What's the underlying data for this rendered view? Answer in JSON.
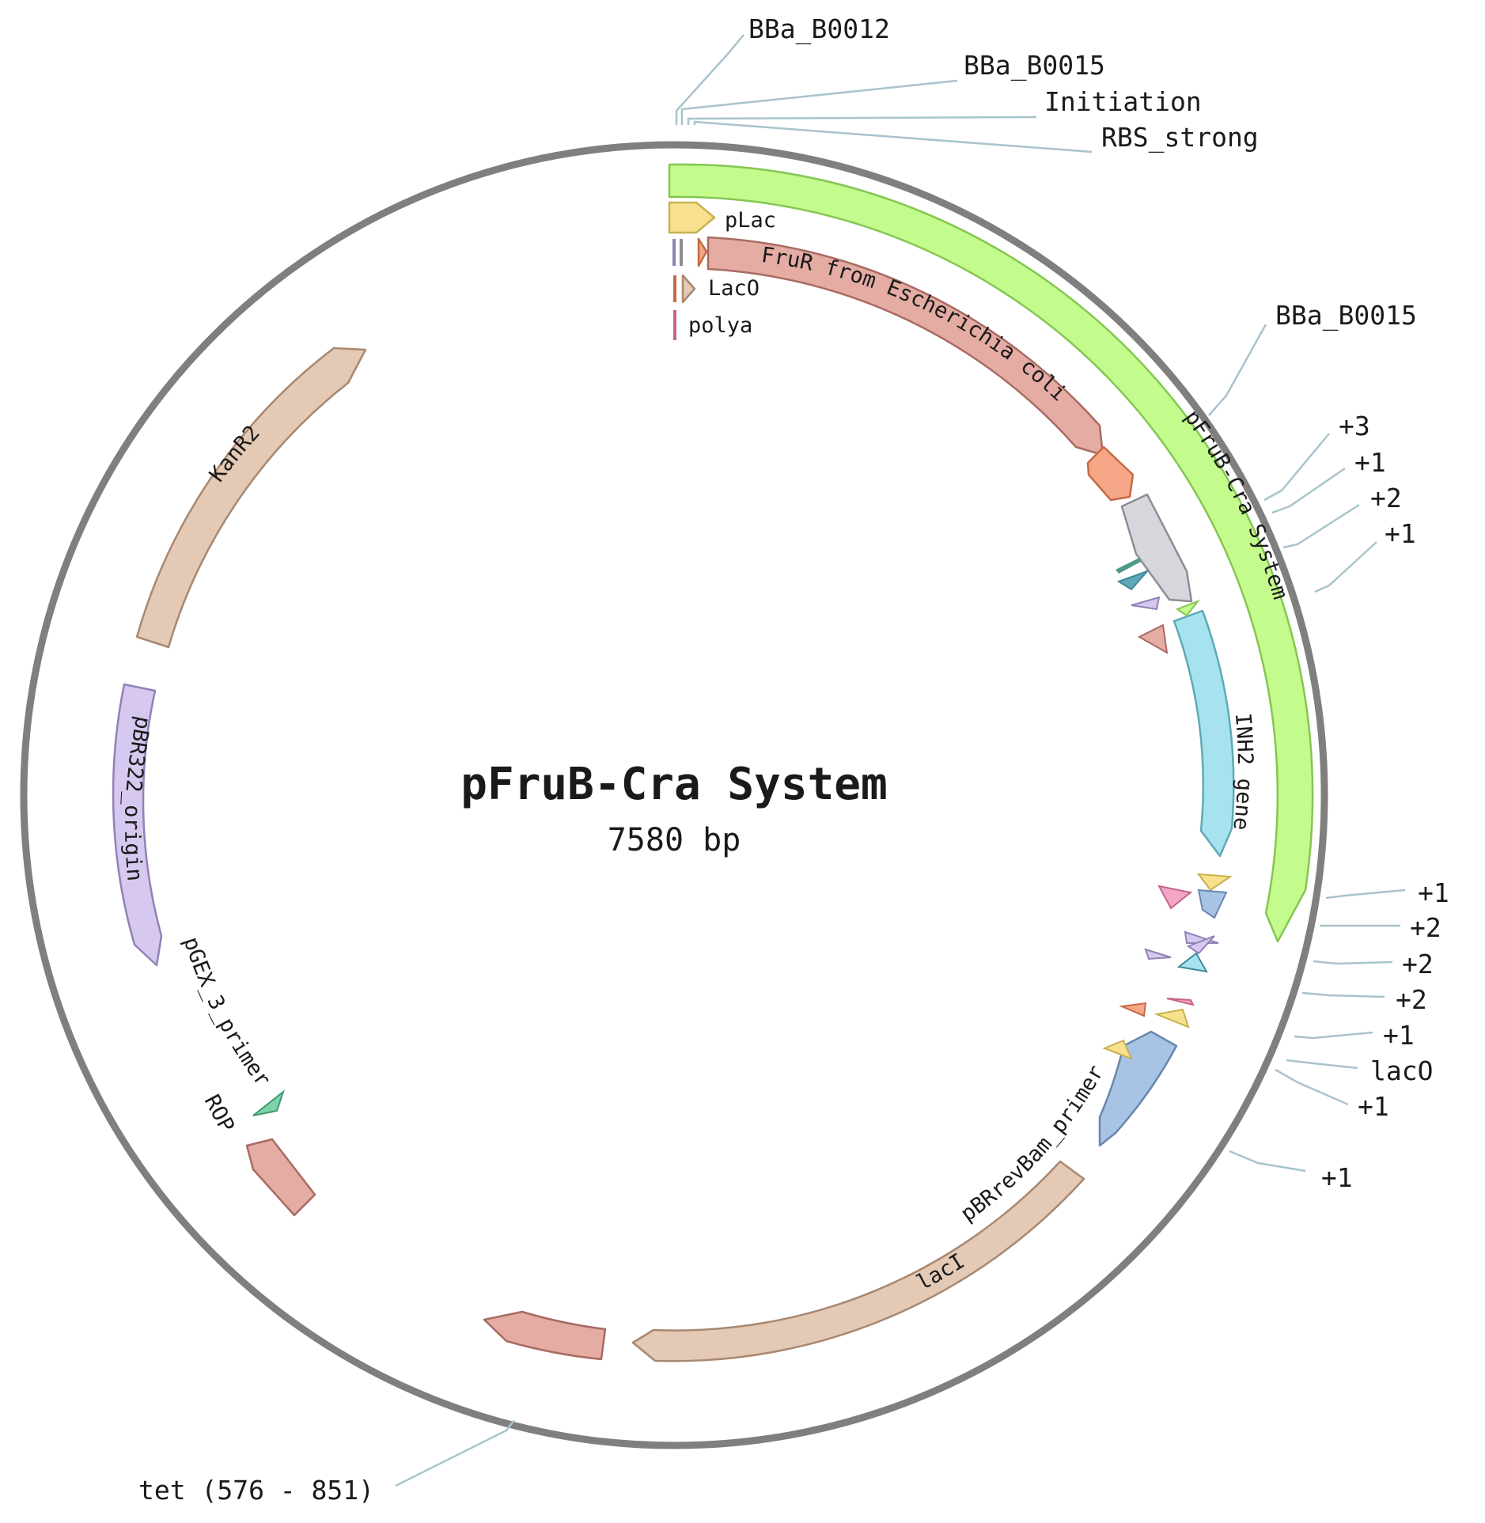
{
  "map": {
    "title": "pFruB-Cra System",
    "length_label": "7580 bp"
  },
  "features": {
    "pfrub": {
      "label": "pFruB-Cra System",
      "fill": "#c3fb8c",
      "stroke": "#84c653"
    },
    "frur": {
      "label": "FruR from Escherichia coli",
      "fill": "#e4aca3",
      "stroke": "#a86b63"
    },
    "inh2": {
      "label": "INH2 gene",
      "fill": "#a6e3ef",
      "stroke": "#5ea9b8"
    },
    "kanr2": {
      "label": "KanR2",
      "fill": "#e4c9b4",
      "stroke": "#a88871"
    },
    "pbr322": {
      "label": "pBR322_origin",
      "fill": "#d6c8ee",
      "stroke": "#9181b8"
    },
    "laci": {
      "label": "lacI",
      "fill": "#e4c9b4",
      "stroke": "#a88871"
    },
    "pbrrevbam": {
      "label": "pBRrevBam_primer",
      "fill": "#a7c4e5",
      "stroke": "#6887ad"
    },
    "rop": {
      "label": "ROP",
      "fill": "#e4aca3",
      "stroke": "#a86b63"
    },
    "tet_block": {
      "fill": "#e4aca3",
      "stroke": "#a86b63"
    },
    "gray_cds": {
      "fill": "#d6d6dc",
      "stroke": "#8d8d96"
    },
    "orange_cds": {
      "fill": "#f6a787",
      "stroke": "#c56a45"
    }
  },
  "labels": {
    "plac": "pLac",
    "laco": "LacO",
    "polya": "polya",
    "pgex": "pGEX_3_primer",
    "bba_b0012": "BBa_B0012",
    "bba_b0015_a": "BBa_B0015",
    "initiation": "Initiation",
    "rbs_strong": "RBS_strong",
    "bba_b0015_b": "BBa_B0015",
    "p3": "+3",
    "p1_a": "+1",
    "p2_a": "+2",
    "p1_b": "+1",
    "p1_c": "+1",
    "p2_b": "+2",
    "p2_c": "+2",
    "p2_d": "+2",
    "p1_d": "+1",
    "laco_right": "lacO",
    "p1_e": "+1",
    "p1_f": "+1",
    "tet": "tet (576 - 851)"
  },
  "colors": {
    "backbone": "#7f7f7f",
    "leader": "#a9c3cc"
  }
}
